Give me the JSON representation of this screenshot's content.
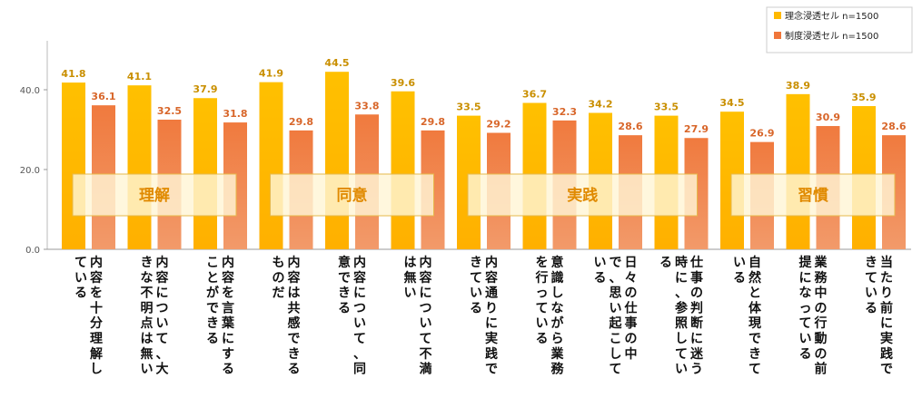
{
  "chart_data": {
    "type": "bar",
    "ylim": [
      0,
      45
    ],
    "yticks": [
      "0.0",
      "20.0",
      "40.0"
    ],
    "yticks_values": [
      0,
      20,
      40
    ],
    "grid": false,
    "legend_position": "top-right",
    "series": [
      {
        "name": "理念浸透セル n=1500",
        "color": "#FFB900",
        "values": [
          41.8,
          41.1,
          37.9,
          41.9,
          44.5,
          39.6,
          33.5,
          36.7,
          34.2,
          33.5,
          34.5,
          38.9,
          35.9
        ]
      },
      {
        "name": "制度浸透セル n=1500",
        "color": "#F0763A",
        "values": [
          36.1,
          32.5,
          31.8,
          29.8,
          33.8,
          29.8,
          29.2,
          32.3,
          28.6,
          27.9,
          26.9,
          30.9,
          28.6
        ]
      }
    ],
    "value_labels": {
      "series0": [
        "41.8",
        "41.1",
        "37.9",
        "41.9",
        "44.5",
        "39.6",
        "33.5",
        "36.7",
        "34.2",
        "33.5",
        "34.5",
        "38.9",
        "35.9"
      ],
      "series1": [
        "36.1",
        "32.5",
        "31.8",
        "29.8",
        "33.8",
        "29.8",
        "29.2",
        "32.3",
        "28.6",
        "27.9",
        "26.9",
        "30.9",
        "28.6"
      ]
    },
    "categories": [
      "内容を十分理解している",
      "内容について、大きな不明点は無い",
      "内容を言葉にすることができる",
      "内容は共感できるものだ",
      "内容について、同意できる",
      "内容について不満は無い",
      "内容通りに実践できている",
      "意識しながら業務を行っている",
      "日々の仕事の中で、思い起こしている",
      "仕事の判断に迷う時に、参照している",
      "自然と体現できている",
      "業務中の行動の前提になっている",
      "当たり前に実践できている"
    ],
    "category_lines": [
      [
        "内容を十分理解し",
        "ている"
      ],
      [
        "内容について、大",
        "きな不明点は無い"
      ],
      [
        "内容を言葉にする",
        "ことができる"
      ],
      [
        "内容は共感できる",
        "ものだ"
      ],
      [
        "内容について、同",
        "意できる"
      ],
      [
        "内容について不満",
        "は無い"
      ],
      [
        "内容通りに実践で",
        "きている"
      ],
      [
        "意識しながら業務",
        "を行っている"
      ],
      [
        "日々の仕事の中",
        "で、思い起こして",
        "いる"
      ],
      [
        "仕事の判断に迷う",
        "時に、参照してい",
        "る"
      ],
      [
        "自然と体現できて",
        "いる"
      ],
      [
        "業務中の行動の前",
        "提になっている"
      ],
      [
        "当たり前に実践で",
        "きている"
      ]
    ],
    "groups": [
      {
        "label": "理解",
        "start": 0,
        "end": 2
      },
      {
        "label": "同意",
        "start": 3,
        "end": 5
      },
      {
        "label": "実践",
        "start": 6,
        "end": 9
      },
      {
        "label": "習慣",
        "start": 10,
        "end": 12
      }
    ]
  }
}
